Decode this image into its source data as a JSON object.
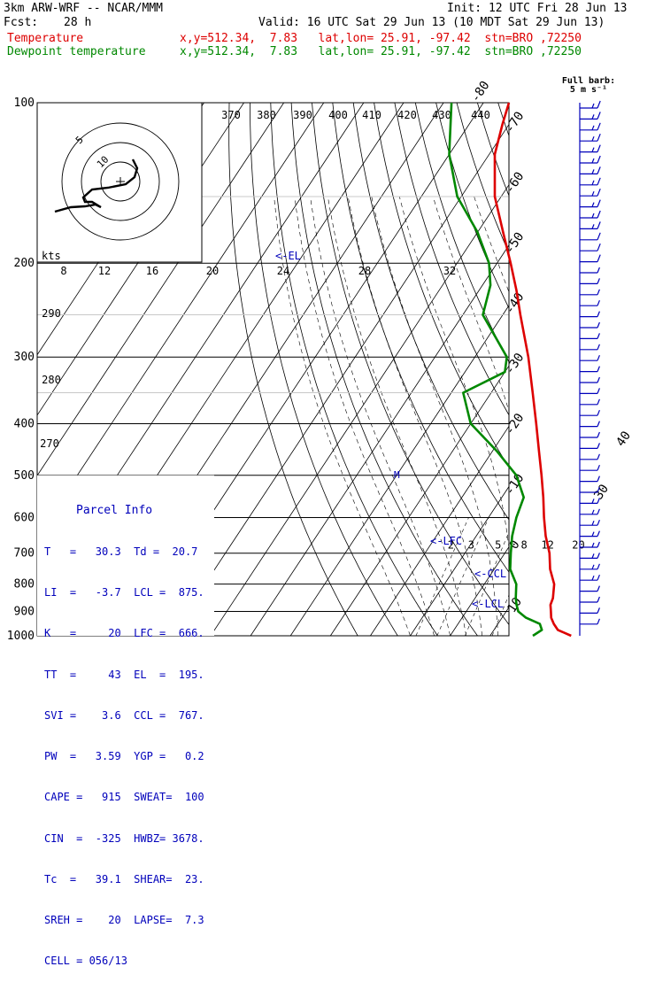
{
  "header": {
    "model": "3km ARW-WRF -- NCAR/MMM",
    "init": "Init: 12 UTC Fri 28 Jun 13",
    "fcst_label": "Fcst:",
    "fcst_value": "28 h",
    "valid": "Valid: 16 UTC Sat 29 Jun 13 (10 MDT Sat 29 Jun 13)",
    "temp_label": "Temperature",
    "temp_info": "x,y=512.34,  7.83   lat,lon= 25.91, -97.42  stn=BRO ,72250",
    "dew_label": "Dewpoint temperature",
    "dew_info": "x,y=512.34,  7.83   lat,lon= 25.91, -97.42  stn=BRO ,72250"
  },
  "parcel_info": {
    "title": "Parcel Info",
    "rows": [
      "T   =   30.3  Td =  20.7",
      "LI  =   -3.7  LCL =  875.",
      "K   =     20  LFC =  666.",
      "TT  =     43  EL  =  195.",
      "SVI =    3.6  CCL =  767.",
      "PW  =   3.59  YGP =   0.2",
      "CAPE =   915  SWEAT=  100",
      "CIN  =  -325  HWBZ= 3678.",
      "Tc  =   39.1  SHEAR=  23.",
      "SREH =    20  LAPSE=  7.3",
      "CELL = 056/13"
    ]
  },
  "barb_label": [
    "Full barb:",
    "5 m s⁻¹"
  ],
  "hodograph": {
    "kts_label": "kts",
    "ring_labels": [
      "5",
      "10"
    ]
  },
  "level_markers": [
    "<-EL",
    "<-LFC",
    "<-CCL",
    "<-LCL"
  ],
  "colors": {
    "temperature": "#dd0000",
    "dewpoint": "#008800",
    "info": "#0000bb"
  },
  "chart_data": {
    "type": "line",
    "subtype": "skew-T log-P",
    "y_axis": {
      "scale": "log",
      "ylim": [
        1000,
        100
      ],
      "tick_labels": [
        "100",
        "200",
        "300",
        "400",
        "500",
        "600",
        "700",
        "800",
        "900",
        "1000"
      ]
    },
    "isotherm_labels": [
      "-80",
      "-70",
      "-60",
      "-50",
      "-40",
      "-30",
      "-20",
      "-10",
      "0",
      "10",
      "20",
      "30",
      "40"
    ],
    "theta_labels": [
      "370",
      "380",
      "390",
      "400",
      "410",
      "420",
      "430",
      "440"
    ],
    "theta_labels_left": [
      "290",
      "280",
      "270"
    ],
    "hodograph_speed_labels": [
      "8",
      "12",
      "16",
      "20",
      "24",
      "28",
      "32"
    ],
    "mixing_ratio_labels": [
      "2",
      "3",
      "5",
      "8",
      "12",
      "20"
    ],
    "series": [
      {
        "name": "Temperature",
        "points": [
          [
            1000,
            30.3
          ],
          [
            975,
            26
          ],
          [
            950,
            24
          ],
          [
            925,
            22.3
          ],
          [
            900,
            21.2
          ],
          [
            875,
            20.0
          ],
          [
            850,
            19.5
          ],
          [
            800,
            17.5
          ],
          [
            750,
            14.0
          ],
          [
            700,
            11.2
          ],
          [
            650,
            7.4
          ],
          [
            600,
            3.9
          ],
          [
            550,
            0.4
          ],
          [
            500,
            -3.7
          ],
          [
            450,
            -8.4
          ],
          [
            400,
            -13.6
          ],
          [
            350,
            -19.6
          ],
          [
            300,
            -26.6
          ],
          [
            250,
            -35.6
          ],
          [
            225,
            -40.6
          ],
          [
            200,
            -46.6
          ],
          [
            175,
            -53.6
          ],
          [
            150,
            -61.6
          ],
          [
            125,
            -68.6
          ],
          [
            110,
            -71.6
          ],
          [
            100,
            -73.6
          ]
        ]
      },
      {
        "name": "Dewpoint temperature",
        "points": [
          [
            1000,
            20.7
          ],
          [
            975,
            22
          ],
          [
            950,
            20.5
          ],
          [
            925,
            16
          ],
          [
            900,
            13
          ],
          [
            875,
            11.5
          ],
          [
            850,
            10.2
          ],
          [
            800,
            8.0
          ],
          [
            750,
            4.0
          ],
          [
            700,
            1.5
          ],
          [
            650,
            -1.0
          ],
          [
            600,
            -3.0
          ],
          [
            550,
            -4.5
          ],
          [
            500,
            -10
          ],
          [
            450,
            -19
          ],
          [
            400,
            -30
          ],
          [
            350,
            -37
          ],
          [
            320,
            -30
          ],
          [
            300,
            -32
          ],
          [
            250,
            -45
          ],
          [
            220,
            -48
          ],
          [
            200,
            -52
          ],
          [
            175,
            -60
          ],
          [
            150,
            -71
          ],
          [
            125,
            -80
          ],
          [
            100,
            -88
          ]
        ]
      }
    ],
    "wind_barbs_unit": "m s-1"
  }
}
